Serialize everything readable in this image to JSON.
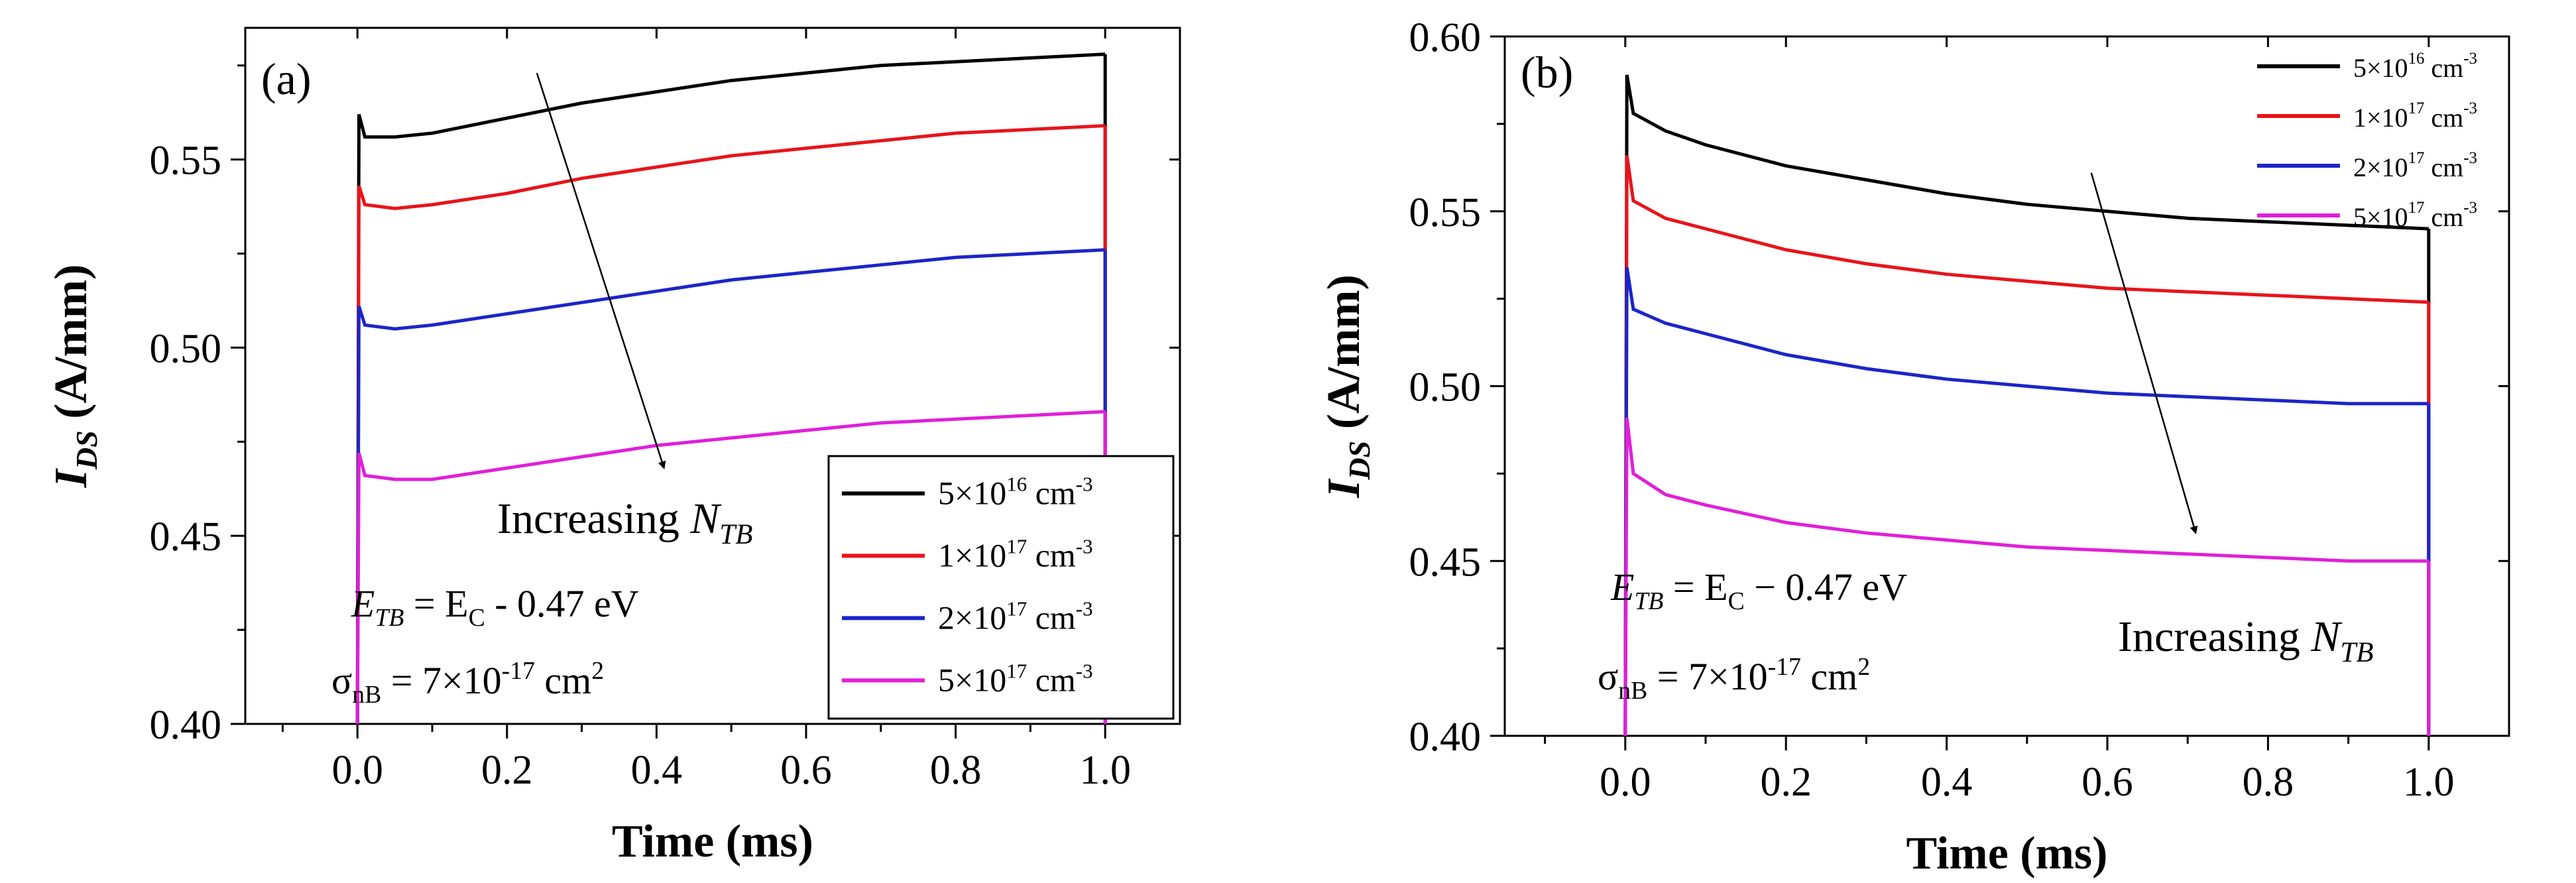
{
  "chart_data": [
    {
      "type": "line",
      "panel_label": "(a)",
      "xlabel": "Time (ms)",
      "ylabel": "I_DS (A/mm)",
      "xlim": [
        -0.15,
        1.1
      ],
      "ylim": [
        0.4,
        0.585
      ],
      "x_ticks": [
        "0.0",
        "0.2",
        "0.4",
        "0.6",
        "0.8",
        "1.0"
      ],
      "y_ticks": [
        "0.40",
        "0.45",
        "0.50",
        "0.55"
      ],
      "grid": false,
      "legend_position": "bottom-right",
      "series": [
        {
          "name": "5×10^16 cm^-3",
          "color": "#000000",
          "x": [
            0,
            0.002,
            0.01,
            0.05,
            0.1,
            0.2,
            0.3,
            0.4,
            0.5,
            0.6,
            0.7,
            0.8,
            0.9,
            1.0
          ],
          "y": [
            0.4,
            0.562,
            0.556,
            0.556,
            0.557,
            0.561,
            0.565,
            0.568,
            0.571,
            0.573,
            0.575,
            0.576,
            0.577,
            0.578
          ]
        },
        {
          "name": "1×10^17 cm^-3",
          "color": "#e8141b",
          "x": [
            0,
            0.002,
            0.01,
            0.05,
            0.1,
            0.2,
            0.3,
            0.4,
            0.5,
            0.6,
            0.7,
            0.8,
            0.9,
            1.0
          ],
          "y": [
            0.4,
            0.543,
            0.538,
            0.537,
            0.538,
            0.541,
            0.545,
            0.548,
            0.551,
            0.553,
            0.555,
            0.557,
            0.558,
            0.559
          ]
        },
        {
          "name": "2×10^17 cm^-3",
          "color": "#1c25c8",
          "x": [
            0,
            0.002,
            0.01,
            0.05,
            0.1,
            0.2,
            0.3,
            0.4,
            0.5,
            0.6,
            0.7,
            0.8,
            0.9,
            1.0
          ],
          "y": [
            0.4,
            0.511,
            0.506,
            0.505,
            0.506,
            0.509,
            0.512,
            0.515,
            0.518,
            0.52,
            0.522,
            0.524,
            0.525,
            0.526
          ]
        },
        {
          "name": "5×10^17 cm^-3",
          "color": "#e020d8",
          "x": [
            0,
            0.002,
            0.01,
            0.05,
            0.1,
            0.2,
            0.3,
            0.4,
            0.5,
            0.6,
            0.7,
            0.8,
            0.9,
            1.0
          ],
          "y": [
            0.4,
            0.472,
            0.466,
            0.465,
            0.465,
            0.468,
            0.471,
            0.474,
            0.476,
            0.478,
            0.48,
            0.481,
            0.482,
            0.483
          ]
        }
      ],
      "legend_entries": [
        {
          "mantissa": "5×10",
          "exp": "16",
          "unit": " cm",
          "uexp": "-3"
        },
        {
          "mantissa": "1×10",
          "exp": "17",
          "unit": " cm",
          "uexp": "-3"
        },
        {
          "mantissa": "2×10",
          "exp": "17",
          "unit": " cm",
          "uexp": "-3"
        },
        {
          "mantissa": "5×10",
          "exp": "17",
          "unit": " cm",
          "uexp": "-3"
        }
      ],
      "annotation": {
        "text": "Increasing ",
        "symbol": "N",
        "sub": "TB",
        "from_xy": [
          0.24,
          0.573
        ],
        "to_xy": [
          0.41,
          0.468
        ]
      },
      "params": {
        "energy": {
          "sym": "E",
          "sub": "TB",
          "rest": " = E",
          "sub2": "C",
          "tail": " - 0.47 eV"
        },
        "sigma": {
          "sym": "σ",
          "sub": "nB",
          "rest": " = 7×10",
          "exp": "-17",
          "tail": " cm",
          "exp2": "2"
        }
      }
    },
    {
      "type": "line",
      "panel_label": "(b)",
      "xlabel": "Time (ms)",
      "ylabel": "I_DS (A/mm)",
      "xlim": [
        -0.15,
        1.1
      ],
      "ylim": [
        0.4,
        0.6
      ],
      "x_ticks": [
        "0.0",
        "0.2",
        "0.4",
        "0.6",
        "0.8",
        "1.0"
      ],
      "y_ticks": [
        "0.40",
        "0.45",
        "0.50",
        "0.55",
        "0.60"
      ],
      "grid": false,
      "legend_position": "top-right",
      "series": [
        {
          "name": "5×10^16 cm^-3",
          "color": "#000000",
          "x": [
            0,
            0.002,
            0.01,
            0.05,
            0.1,
            0.2,
            0.3,
            0.4,
            0.5,
            0.6,
            0.7,
            0.8,
            0.9,
            1.0
          ],
          "y": [
            0.4,
            0.589,
            0.578,
            0.573,
            0.569,
            0.563,
            0.559,
            0.555,
            0.552,
            0.55,
            0.548,
            0.547,
            0.546,
            0.545
          ]
        },
        {
          "name": "1×10^17 cm^-3",
          "color": "#e8141b",
          "x": [
            0,
            0.002,
            0.01,
            0.05,
            0.1,
            0.2,
            0.3,
            0.4,
            0.5,
            0.6,
            0.7,
            0.8,
            0.9,
            1.0
          ],
          "y": [
            0.4,
            0.566,
            0.553,
            0.548,
            0.545,
            0.539,
            0.535,
            0.532,
            0.53,
            0.528,
            0.527,
            0.526,
            0.525,
            0.524
          ]
        },
        {
          "name": "2×10^17 cm^-3",
          "color": "#1c25c8",
          "x": [
            0,
            0.002,
            0.01,
            0.05,
            0.1,
            0.2,
            0.3,
            0.4,
            0.5,
            0.6,
            0.7,
            0.8,
            0.9,
            1.0
          ],
          "y": [
            0.4,
            0.534,
            0.522,
            0.518,
            0.515,
            0.509,
            0.505,
            0.502,
            0.5,
            0.498,
            0.497,
            0.496,
            0.495,
            0.495
          ]
        },
        {
          "name": "5×10^17 cm^-3",
          "color": "#e020d8",
          "x": [
            0,
            0.002,
            0.01,
            0.05,
            0.1,
            0.2,
            0.3,
            0.4,
            0.5,
            0.6,
            0.7,
            0.8,
            0.9,
            1.0
          ],
          "y": [
            0.4,
            0.491,
            0.475,
            0.469,
            0.466,
            0.461,
            0.458,
            0.456,
            0.454,
            0.453,
            0.452,
            0.451,
            0.45,
            0.45
          ]
        }
      ],
      "legend_entries": [
        {
          "mantissa": "5×10",
          "exp": "16",
          "unit": " cm",
          "uexp": "-3"
        },
        {
          "mantissa": "1×10",
          "exp": "17",
          "unit": " cm",
          "uexp": "-3"
        },
        {
          "mantissa": "2×10",
          "exp": "17",
          "unit": " cm",
          "uexp": "-3"
        },
        {
          "mantissa": "5×10",
          "exp": "17",
          "unit": " cm",
          "uexp": "-3"
        }
      ],
      "annotation": {
        "text": "Increasing ",
        "symbol": "N",
        "sub": "TB",
        "from_xy": [
          0.58,
          0.561
        ],
        "to_xy": [
          0.71,
          0.458
        ]
      },
      "params": {
        "energy": {
          "sym": "E",
          "sub": "TB",
          "rest": " = E",
          "sub2": "C",
          "tail": " − 0.47 eV"
        },
        "sigma": {
          "sym": "σ",
          "sub": "nB",
          "rest": " = 7×10",
          "exp": "-17",
          "tail": " cm",
          "exp2": "2"
        }
      }
    }
  ]
}
